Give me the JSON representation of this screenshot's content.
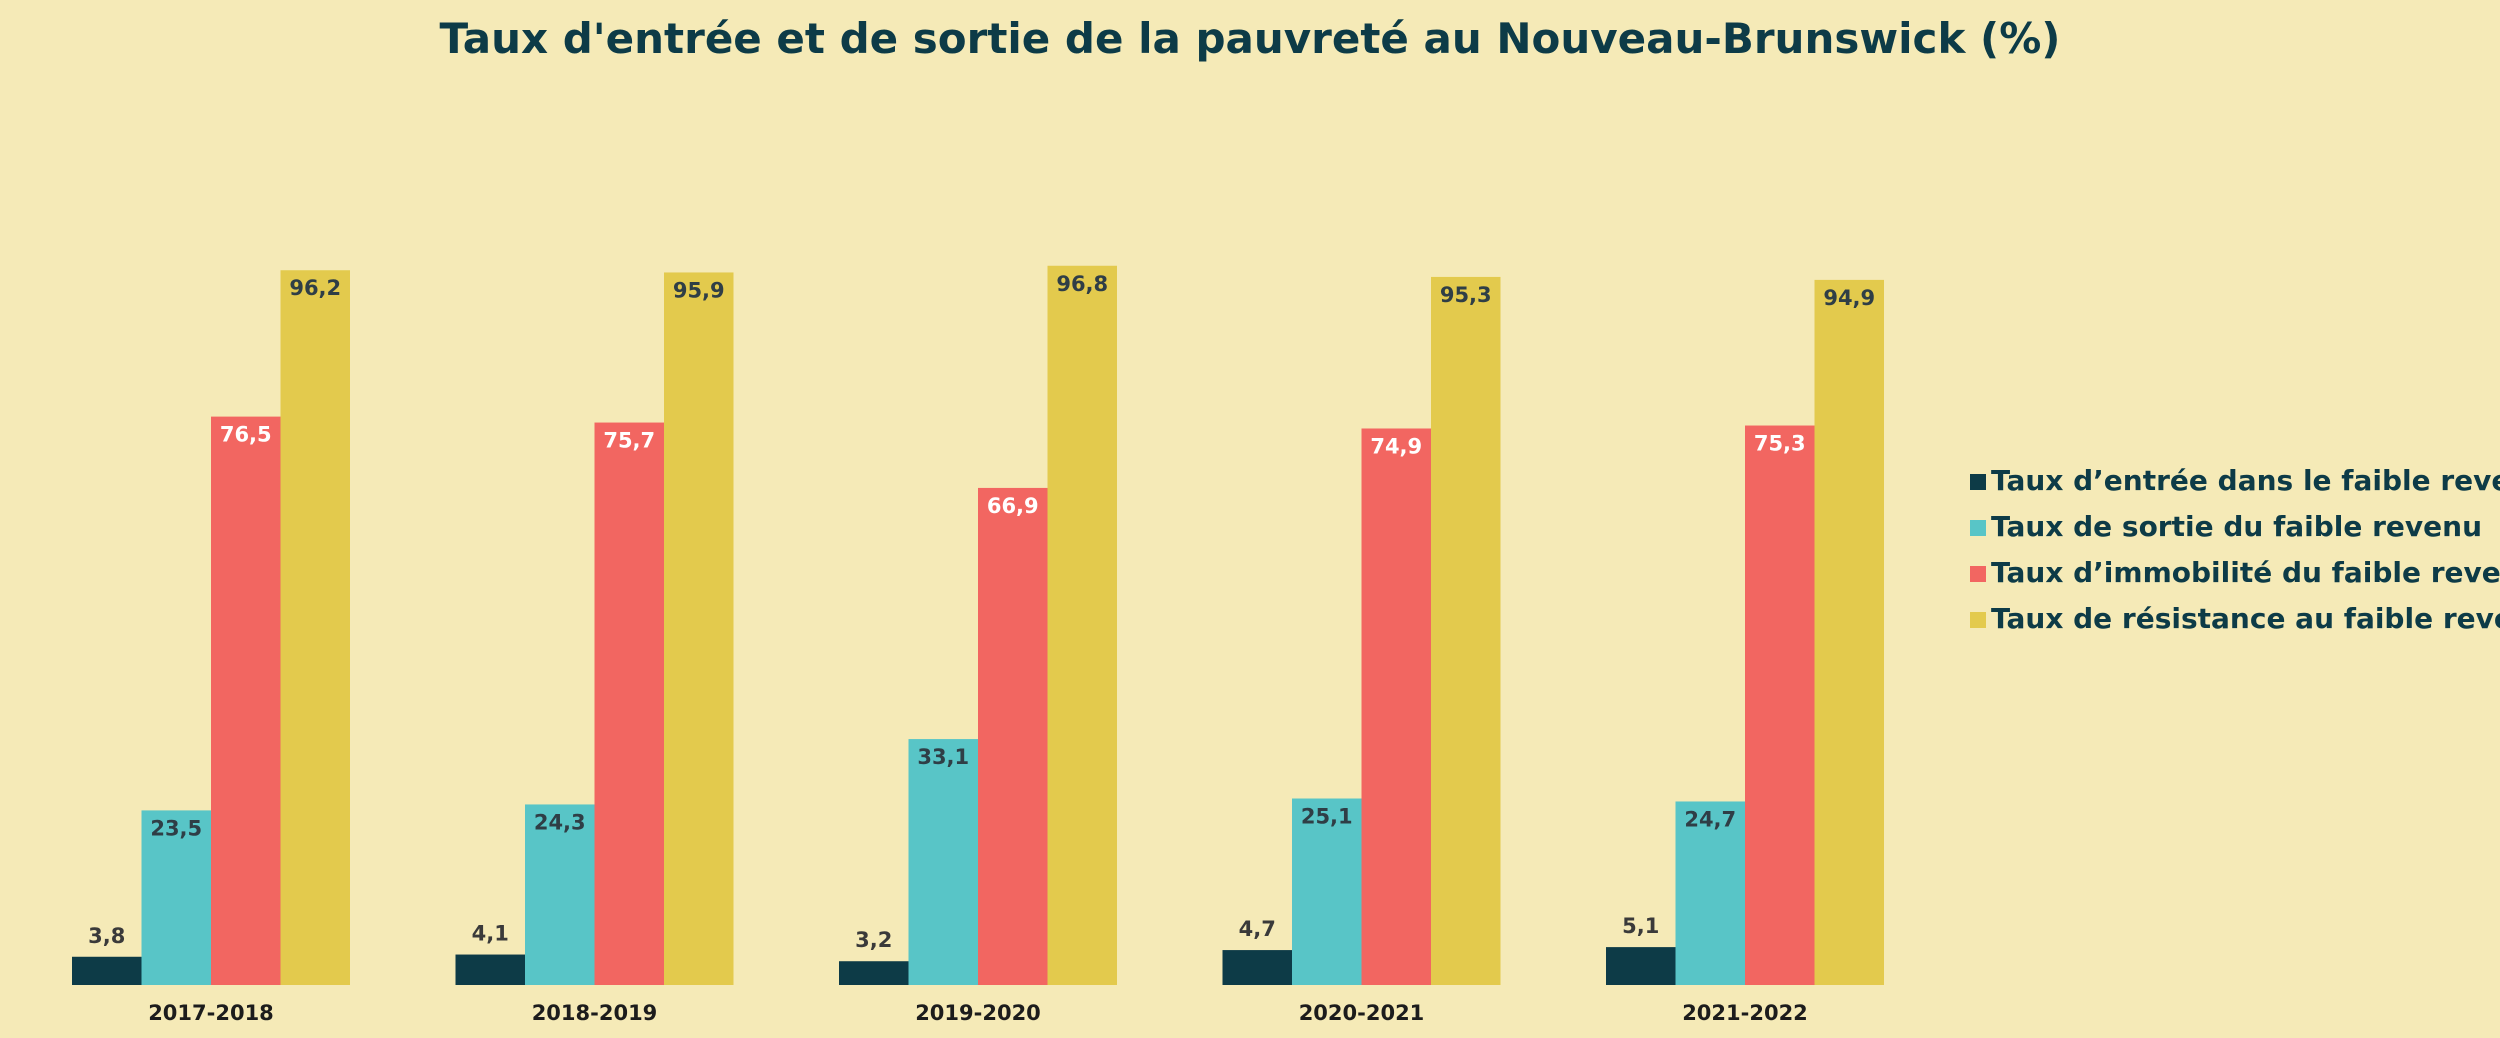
{
  "chart_data": {
    "type": "bar",
    "title": "Taux d'entrée et de sortie de la pauvreté au Nouveau-Brunswick (%)",
    "xlabel": "",
    "ylabel": "",
    "ylim": [
      0,
      100
    ],
    "grid": false,
    "legend_position": "right",
    "categories": [
      "2017-2018",
      "2018-2019",
      "2019-2020",
      "2020-2021",
      "2021-2022"
    ],
    "series": [
      {
        "name": "Taux d’entrée dans le faible revenu",
        "color": "#0d3b47",
        "label_color": "#3a3a3a",
        "label_inside": false,
        "values": [
          3.8,
          4.1,
          3.2,
          4.7,
          5.1
        ],
        "labels": [
          "3,8",
          "4,1",
          "3,2",
          "4,7",
          "5,1"
        ]
      },
      {
        "name": "Taux de sortie du faible revenu",
        "color": "#58c5c7",
        "label_color": "#2f3e46",
        "label_inside": true,
        "values": [
          23.5,
          24.3,
          33.1,
          25.1,
          24.7
        ],
        "labels": [
          "23,5",
          "24,3",
          "33,1",
          "25,1",
          "24,7"
        ]
      },
      {
        "name": "Taux d’immobilité du faible revenu",
        "color": "#f26661",
        "label_color": "#ffffff",
        "label_inside": true,
        "values": [
          76.5,
          75.7,
          66.9,
          74.9,
          75.3
        ],
        "labels": [
          "76,5",
          "75,7",
          "66,9",
          "74,9",
          "75,3"
        ]
      },
      {
        "name": "Taux de résistance au faible revenu",
        "color": "#e3ca4d",
        "label_color": "#2f3e46",
        "label_inside": true,
        "values": [
          96.2,
          95.9,
          96.8,
          95.3,
          94.9
        ],
        "labels": [
          "96,2",
          "95,9",
          "96,8",
          "95,3",
          "94,9"
        ]
      }
    ]
  }
}
